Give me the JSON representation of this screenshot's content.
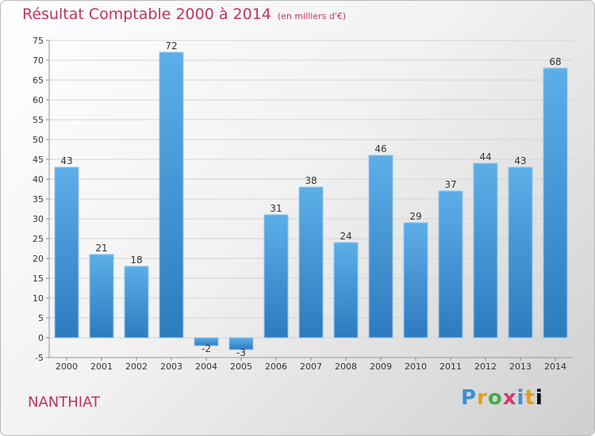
{
  "header": {
    "title": "Résultat Comptable 2000 à 2014",
    "subtitle": "(en milliers d'€)"
  },
  "footer": {
    "place": "NANTHIAT",
    "brand": "Proxiti"
  },
  "colors": {
    "title": "#c0345a",
    "bar_light": "#5caee8",
    "bar_dark": "#2d7bbf"
  },
  "chart_data": {
    "type": "bar",
    "title": "Résultat Comptable 2000 à 2014",
    "subtitle": "(en milliers d'€)",
    "xlabel": "",
    "ylabel": "",
    "categories": [
      "2000",
      "2001",
      "2002",
      "2003",
      "2004",
      "2005",
      "2006",
      "2007",
      "2008",
      "2009",
      "2010",
      "2011",
      "2012",
      "2013",
      "2014"
    ],
    "values": [
      43,
      21,
      18,
      72,
      -2,
      -3,
      31,
      38,
      24,
      46,
      29,
      37,
      44,
      43,
      68
    ],
    "ylim": [
      -5,
      75
    ],
    "yticks": [
      -5,
      0,
      5,
      10,
      15,
      20,
      25,
      30,
      35,
      40,
      45,
      50,
      55,
      60,
      65,
      70,
      75
    ],
    "grid": true,
    "legend": "none"
  }
}
